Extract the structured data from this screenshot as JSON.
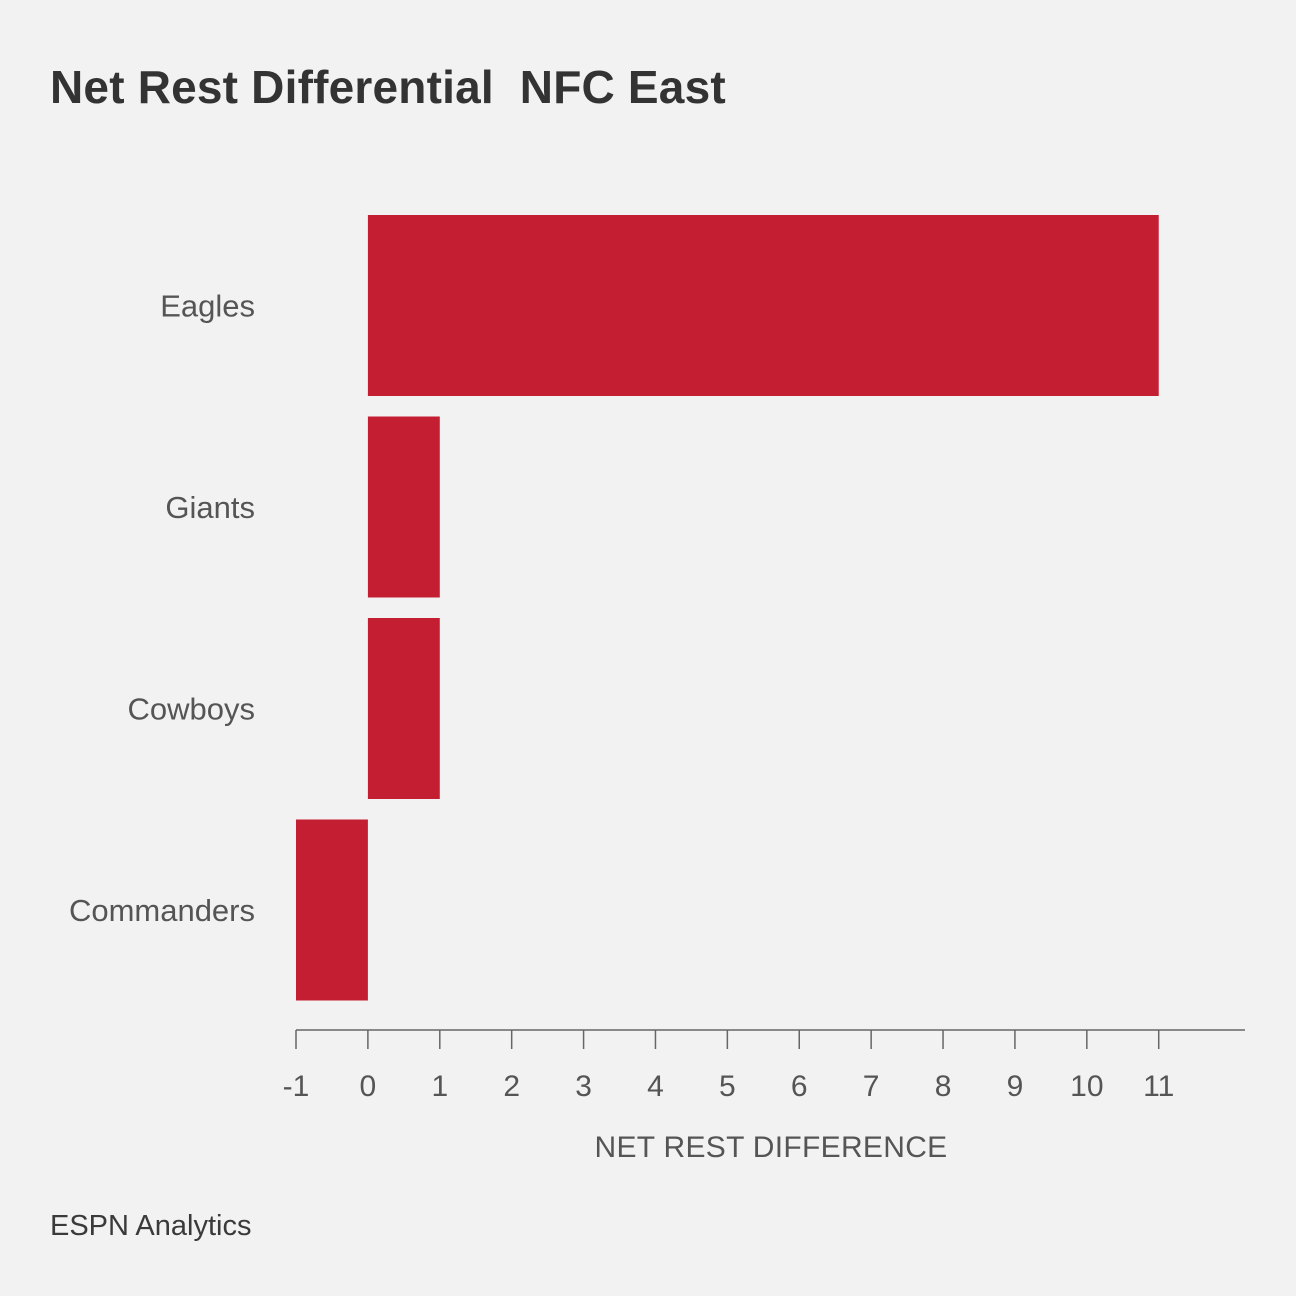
{
  "header": {
    "title": "Net Rest Differential  NFC East"
  },
  "footer": {
    "source": "ESPN Analytics"
  },
  "chart_data": {
    "type": "bar",
    "orientation": "horizontal",
    "title": "Net Rest Differential  NFC East",
    "categories": [
      "Eagles",
      "Giants",
      "Cowboys",
      "Commanders"
    ],
    "values": [
      11,
      1,
      1,
      -1
    ],
    "xlabel": "NET REST DIFFERENCE",
    "ylabel": "",
    "xlim": [
      -1,
      12.2
    ],
    "xticks": [
      -1,
      0,
      1,
      2,
      3,
      4,
      5,
      6,
      7,
      8,
      9,
      10,
      11
    ],
    "xtick_labels": [
      "-1",
      "0",
      "1",
      "2",
      "3",
      "4",
      "5",
      "6",
      "7",
      "8",
      "9",
      "10",
      "11"
    ],
    "grid": false,
    "legend": "none",
    "bar_color": "#c41e32",
    "axis_color": "#666666"
  }
}
